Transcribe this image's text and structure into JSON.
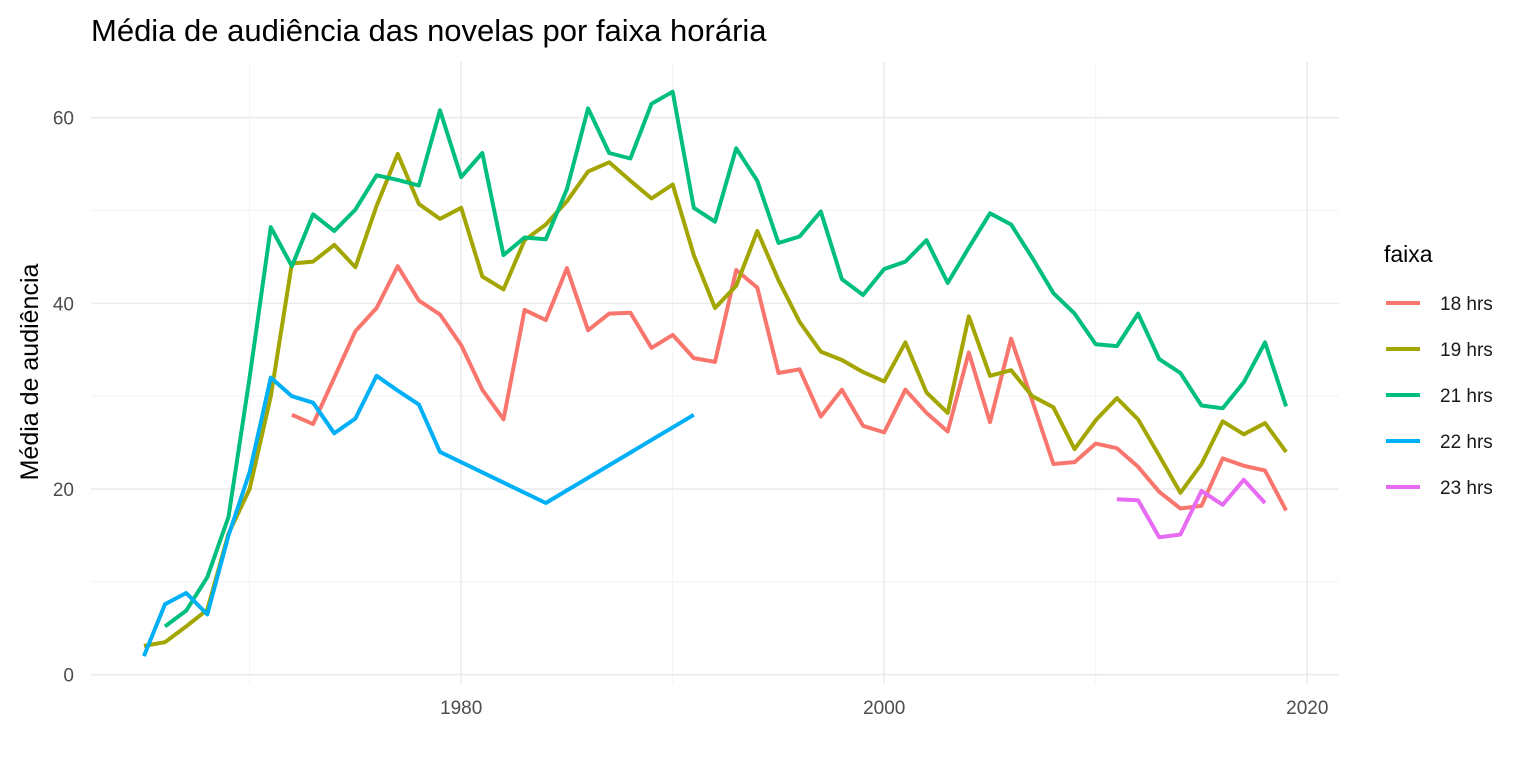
{
  "chart_data": {
    "type": "line",
    "title": "Média de audiência das novelas por faixa horária",
    "xlabel": "",
    "ylabel": "Média de audiência",
    "xlim": [
      1962.5,
      2021.5
    ],
    "ylim": [
      -1,
      66
    ],
    "x_ticks": [
      1980,
      2000,
      2020
    ],
    "y_ticks": [
      0,
      20,
      40,
      60
    ],
    "x_minor": [
      1970,
      1990,
      2010
    ],
    "y_minor": [
      10,
      30,
      50
    ],
    "grid": true,
    "legend": {
      "title": "faixa",
      "position": "right"
    },
    "series": [
      {
        "name": "18 hrs",
        "color": "#F8766D",
        "points": [
          [
            1972,
            28
          ],
          [
            1973,
            27
          ],
          [
            1974,
            32
          ],
          [
            1975,
            37
          ],
          [
            1976,
            39.5
          ],
          [
            1977,
            44
          ],
          [
            1978,
            40.3
          ],
          [
            1979,
            38.8
          ],
          [
            1980,
            35.5
          ],
          [
            1981,
            30.7
          ],
          [
            1982,
            27.5
          ],
          [
            1983,
            39.3
          ],
          [
            1984,
            38.2
          ],
          [
            1985,
            43.8
          ],
          [
            1986,
            37.1
          ],
          [
            1987,
            38.9
          ],
          [
            1988,
            39
          ],
          [
            1989,
            35.2
          ],
          [
            1990,
            36.6
          ],
          [
            1991,
            34.1
          ],
          [
            1992,
            33.7
          ],
          [
            1993,
            43.6
          ],
          [
            1994,
            41.7
          ],
          [
            1995,
            32.5
          ],
          [
            1996,
            32.9
          ],
          [
            1997,
            27.8
          ],
          [
            1998,
            30.7
          ],
          [
            1999,
            26.8
          ],
          [
            2000,
            26.1
          ],
          [
            2001,
            30.7
          ],
          [
            2002,
            28.2
          ],
          [
            2003,
            26.2
          ],
          [
            2004,
            34.7
          ],
          [
            2005,
            27.2
          ],
          [
            2006,
            36.2
          ],
          [
            2007,
            29.5
          ],
          [
            2008,
            22.7
          ],
          [
            2009,
            22.9
          ],
          [
            2010,
            24.9
          ],
          [
            2011,
            24.4
          ],
          [
            2012,
            22.4
          ],
          [
            2013,
            19.7
          ],
          [
            2014,
            17.9
          ],
          [
            2015,
            18.2
          ],
          [
            2016,
            23.3
          ],
          [
            2017,
            22.5
          ],
          [
            2018,
            22
          ],
          [
            2019,
            17.7
          ]
        ]
      },
      {
        "name": "19 hrs",
        "color": "#A3A500",
        "points": [
          [
            1965,
            3.1
          ],
          [
            1966,
            3.5
          ],
          [
            1967,
            5.2
          ],
          [
            1968,
            7
          ],
          [
            1969,
            15.2
          ],
          [
            1970,
            20
          ],
          [
            1971,
            30
          ],
          [
            1972,
            44.3
          ],
          [
            1973,
            44.5
          ],
          [
            1974,
            46.3
          ],
          [
            1975,
            43.9
          ],
          [
            1976,
            50.5
          ],
          [
            1977,
            56.1
          ],
          [
            1978,
            50.7
          ],
          [
            1979,
            49.1
          ],
          [
            1980,
            50.3
          ],
          [
            1981,
            42.9
          ],
          [
            1982,
            41.5
          ],
          [
            1983,
            46.8
          ],
          [
            1984,
            48.5
          ],
          [
            1985,
            51
          ],
          [
            1986,
            54.2
          ],
          [
            1987,
            55.2
          ],
          [
            1988,
            53.2
          ],
          [
            1989,
            51.3
          ],
          [
            1990,
            52.8
          ],
          [
            1991,
            45.2
          ],
          [
            1992,
            39.5
          ],
          [
            1993,
            41.9
          ],
          [
            1994,
            47.8
          ],
          [
            1995,
            42.5
          ],
          [
            1996,
            38
          ],
          [
            1997,
            34.8
          ],
          [
            1998,
            33.9
          ],
          [
            1999,
            32.6
          ],
          [
            2000,
            31.6
          ],
          [
            2001,
            35.8
          ],
          [
            2002,
            30.4
          ],
          [
            2003,
            28.2
          ],
          [
            2004,
            38.6
          ],
          [
            2005,
            32.2
          ],
          [
            2006,
            32.8
          ],
          [
            2007,
            30
          ],
          [
            2008,
            28.8
          ],
          [
            2009,
            24.3
          ],
          [
            2010,
            27.4
          ],
          [
            2011,
            29.8
          ],
          [
            2012,
            27.5
          ],
          [
            2013,
            23.6
          ],
          [
            2014,
            19.6
          ],
          [
            2015,
            22.7
          ],
          [
            2016,
            27.3
          ],
          [
            2017,
            25.9
          ],
          [
            2018,
            27.1
          ],
          [
            2019,
            24
          ]
        ]
      },
      {
        "name": "21 hrs",
        "color": "#00BF7D",
        "points": [
          [
            1966,
            5.2
          ],
          [
            1967,
            6.9
          ],
          [
            1968,
            10.5
          ],
          [
            1969,
            17
          ],
          [
            1970,
            32
          ],
          [
            1971,
            48.2
          ],
          [
            1972,
            44
          ],
          [
            1973,
            49.6
          ],
          [
            1974,
            47.8
          ],
          [
            1975,
            50.1
          ],
          [
            1976,
            53.8
          ],
          [
            1977,
            53.3
          ],
          [
            1978,
            52.7
          ],
          [
            1979,
            60.8
          ],
          [
            1980,
            53.6
          ],
          [
            1981,
            56.2
          ],
          [
            1982,
            45.2
          ],
          [
            1983,
            47.1
          ],
          [
            1984,
            46.9
          ],
          [
            1985,
            52.3
          ],
          [
            1986,
            61
          ],
          [
            1987,
            56.2
          ],
          [
            1988,
            55.6
          ],
          [
            1989,
            61.5
          ],
          [
            1990,
            62.8
          ],
          [
            1991,
            50.3
          ],
          [
            1992,
            48.8
          ],
          [
            1993,
            56.7
          ],
          [
            1994,
            53.2
          ],
          [
            1995,
            46.5
          ],
          [
            1996,
            47.2
          ],
          [
            1997,
            49.9
          ],
          [
            1998,
            42.6
          ],
          [
            1999,
            40.9
          ],
          [
            2000,
            43.7
          ],
          [
            2001,
            44.5
          ],
          [
            2002,
            46.8
          ],
          [
            2003,
            42.2
          ],
          [
            2004,
            46
          ],
          [
            2005,
            49.7
          ],
          [
            2006,
            48.5
          ],
          [
            2007,
            44.9
          ],
          [
            2008,
            41.1
          ],
          [
            2009,
            38.9
          ],
          [
            2010,
            35.6
          ],
          [
            2011,
            35.4
          ],
          [
            2012,
            38.9
          ],
          [
            2013,
            34
          ],
          [
            2014,
            32.5
          ],
          [
            2015,
            29
          ],
          [
            2016,
            28.7
          ],
          [
            2017,
            31.5
          ],
          [
            2018,
            35.8
          ],
          [
            2019,
            28.9
          ]
        ]
      },
      {
        "name": "22 hrs",
        "color": "#00B0F6",
        "points": [
          [
            1965,
            2
          ],
          [
            1966,
            7.6
          ],
          [
            1967,
            8.8
          ],
          [
            1968,
            6.5
          ],
          [
            1969,
            15
          ],
          [
            1970,
            21.8
          ],
          [
            1971,
            32
          ],
          [
            1972,
            30
          ],
          [
            1973,
            29.3
          ],
          [
            1974,
            26
          ],
          [
            1975,
            27.6
          ],
          [
            1976,
            32.2
          ],
          [
            1977,
            30.6
          ],
          [
            1978,
            29.1
          ],
          [
            1979,
            24
          ],
          [
            1984,
            18.5
          ],
          [
            1991,
            28
          ]
        ]
      },
      {
        "name": "23 hrs",
        "color": "#E76BF3",
        "points": [
          [
            2011,
            18.9
          ],
          [
            2012,
            18.8
          ],
          [
            2013,
            14.8
          ],
          [
            2014,
            15.1
          ],
          [
            2015,
            19.8
          ],
          [
            2016,
            18.3
          ],
          [
            2017,
            21
          ],
          [
            2018,
            18.5
          ]
        ]
      }
    ]
  }
}
